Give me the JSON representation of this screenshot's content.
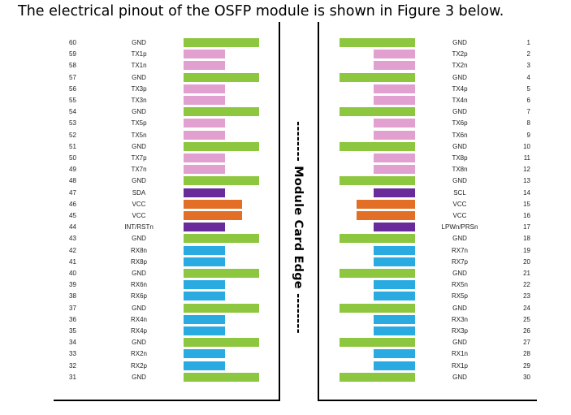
{
  "heading": "The electrical pinout of the OSFP module is shown in Figure 3 below.",
  "edge_label": "-------- Module Card Edge --------",
  "colors": {
    "gnd": "#8dc63f",
    "tx": "#e1a0d0",
    "rx": "#29abe2",
    "ls": "#6a2b9a",
    "vcc": "#e36e25"
  },
  "left_pins": [
    {
      "num": "60",
      "label": "GND",
      "type": "gnd"
    },
    {
      "num": "59",
      "label": "TX1p",
      "type": "tx"
    },
    {
      "num": "58",
      "label": "TX1n",
      "type": "tx"
    },
    {
      "num": "57",
      "label": "GND",
      "type": "gnd"
    },
    {
      "num": "56",
      "label": "TX3p",
      "type": "tx"
    },
    {
      "num": "55",
      "label": "TX3n",
      "type": "tx"
    },
    {
      "num": "54",
      "label": "GND",
      "type": "gnd"
    },
    {
      "num": "53",
      "label": "TX5p",
      "type": "tx"
    },
    {
      "num": "52",
      "label": "TX5n",
      "type": "tx"
    },
    {
      "num": "51",
      "label": "GND",
      "type": "gnd"
    },
    {
      "num": "50",
      "label": "TX7p",
      "type": "tx"
    },
    {
      "num": "49",
      "label": "TX7n",
      "type": "tx"
    },
    {
      "num": "48",
      "label": "GND",
      "type": "gnd"
    },
    {
      "num": "47",
      "label": "SDA",
      "type": "ls"
    },
    {
      "num": "46",
      "label": "VCC",
      "type": "vcc"
    },
    {
      "num": "45",
      "label": "VCC",
      "type": "vcc"
    },
    {
      "num": "44",
      "label": "INT/RSTn",
      "type": "ls"
    },
    {
      "num": "43",
      "label": "GND",
      "type": "gnd"
    },
    {
      "num": "42",
      "label": "RX8n",
      "type": "rx"
    },
    {
      "num": "41",
      "label": "RX8p",
      "type": "rx"
    },
    {
      "num": "40",
      "label": "GND",
      "type": "gnd"
    },
    {
      "num": "39",
      "label": "RX6n",
      "type": "rx"
    },
    {
      "num": "38",
      "label": "RX6p",
      "type": "rx"
    },
    {
      "num": "37",
      "label": "GND",
      "type": "gnd"
    },
    {
      "num": "36",
      "label": "RX4n",
      "type": "rx"
    },
    {
      "num": "35",
      "label": "RX4p",
      "type": "rx"
    },
    {
      "num": "34",
      "label": "GND",
      "type": "gnd"
    },
    {
      "num": "33",
      "label": "RX2n",
      "type": "rx"
    },
    {
      "num": "32",
      "label": "RX2p",
      "type": "rx"
    },
    {
      "num": "31",
      "label": "GND",
      "type": "gnd"
    }
  ],
  "right_pins": [
    {
      "num": "1",
      "label": "GND",
      "type": "gnd"
    },
    {
      "num": "2",
      "label": "TX2p",
      "type": "tx"
    },
    {
      "num": "3",
      "label": "TX2n",
      "type": "tx"
    },
    {
      "num": "4",
      "label": "GND",
      "type": "gnd"
    },
    {
      "num": "5",
      "label": "TX4p",
      "type": "tx"
    },
    {
      "num": "6",
      "label": "TX4n",
      "type": "tx"
    },
    {
      "num": "7",
      "label": "GND",
      "type": "gnd"
    },
    {
      "num": "8",
      "label": "TX6p",
      "type": "tx"
    },
    {
      "num": "9",
      "label": "TX6n",
      "type": "tx"
    },
    {
      "num": "10",
      "label": "GND",
      "type": "gnd"
    },
    {
      "num": "11",
      "label": "TX8p",
      "type": "tx"
    },
    {
      "num": "12",
      "label": "TX8n",
      "type": "tx"
    },
    {
      "num": "13",
      "label": "GND",
      "type": "gnd"
    },
    {
      "num": "14",
      "label": "SCL",
      "type": "ls"
    },
    {
      "num": "15",
      "label": "VCC",
      "type": "vcc"
    },
    {
      "num": "16",
      "label": "VCC",
      "type": "vcc"
    },
    {
      "num": "17",
      "label": "LPWn/PRSn",
      "type": "ls"
    },
    {
      "num": "18",
      "label": "GND",
      "type": "gnd"
    },
    {
      "num": "19",
      "label": "RX7n",
      "type": "rx"
    },
    {
      "num": "20",
      "label": "RX7p",
      "type": "rx"
    },
    {
      "num": "21",
      "label": "GND",
      "type": "gnd"
    },
    {
      "num": "22",
      "label": "RX5n",
      "type": "rx"
    },
    {
      "num": "23",
      "label": "RX5p",
      "type": "rx"
    },
    {
      "num": "24",
      "label": "GND",
      "type": "gnd"
    },
    {
      "num": "25",
      "label": "RX3n",
      "type": "rx"
    },
    {
      "num": "26",
      "label": "RX3p",
      "type": "rx"
    },
    {
      "num": "27",
      "label": "GND",
      "type": "gnd"
    },
    {
      "num": "28",
      "label": "RX1n",
      "type": "rx"
    },
    {
      "num": "29",
      "label": "RX1p",
      "type": "rx"
    },
    {
      "num": "30",
      "label": "GND",
      "type": "gnd"
    }
  ]
}
